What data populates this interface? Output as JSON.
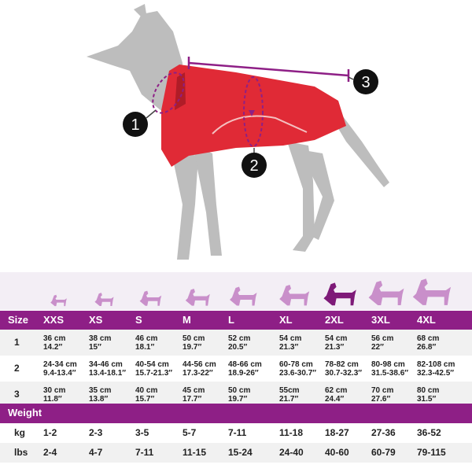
{
  "callouts": [
    "1",
    "2",
    "3"
  ],
  "size_table": {
    "header": [
      "Size",
      "XXS",
      "XS",
      "S",
      "M",
      "L",
      "XL",
      "2XL",
      "3XL",
      "4XL"
    ],
    "rows": [
      {
        "label": "1",
        "cells": [
          [
            "36 cm",
            "14.2″"
          ],
          [
            "38 cm",
            "15″"
          ],
          [
            "46 cm",
            "18.1″"
          ],
          [
            "50 cm",
            "19.7″"
          ],
          [
            "52 cm",
            "20.5″"
          ],
          [
            "54 cm",
            "21.3″"
          ],
          [
            "54 cm",
            "21.3″"
          ],
          [
            "56 cm",
            "22″"
          ],
          [
            "68 cm",
            "26.8″"
          ]
        ]
      },
      {
        "label": "2",
        "cells": [
          [
            "24-34 cm",
            "9.4-13.4″"
          ],
          [
            "34-46 cm",
            "13.4-18.1″"
          ],
          [
            "40-54 cm",
            "15.7-21.3″"
          ],
          [
            "44-56 cm",
            "17.3-22″"
          ],
          [
            "48-66 cm",
            "18.9-26″"
          ],
          [
            "60-78 cm",
            "23.6-30.7″"
          ],
          [
            "78-82 cm",
            "30.7-32.3″"
          ],
          [
            "80-98 cm",
            "31.5-38.6″"
          ],
          [
            "82-108 cm",
            "32.3-42.5″"
          ]
        ]
      },
      {
        "label": "3",
        "cells": [
          [
            "30 cm",
            "11.8″"
          ],
          [
            "35 cm",
            "13.8″"
          ],
          [
            "40 cm",
            "15.7″"
          ],
          [
            "45 cm",
            "17.7″"
          ],
          [
            "50 cm",
            "19.7″"
          ],
          [
            "55cm",
            "21.7″"
          ],
          [
            "62 cm",
            "24.4″"
          ],
          [
            "70 cm",
            "27.6″"
          ],
          [
            "80 cm",
            "31.5″"
          ]
        ]
      }
    ]
  },
  "weight": {
    "title": "Weight",
    "rows": [
      {
        "label": "kg",
        "values": [
          "1-2",
          "2-3",
          "3-5",
          "5-7",
          "7-11",
          "11-18",
          "18-27",
          "27-36",
          "36-52"
        ]
      },
      {
        "label": "lbs",
        "values": [
          "2-4",
          "4-7",
          "7-11",
          "11-15",
          "15-24",
          "24-40",
          "40-60",
          "60-79",
          "79-115"
        ]
      }
    ]
  }
}
